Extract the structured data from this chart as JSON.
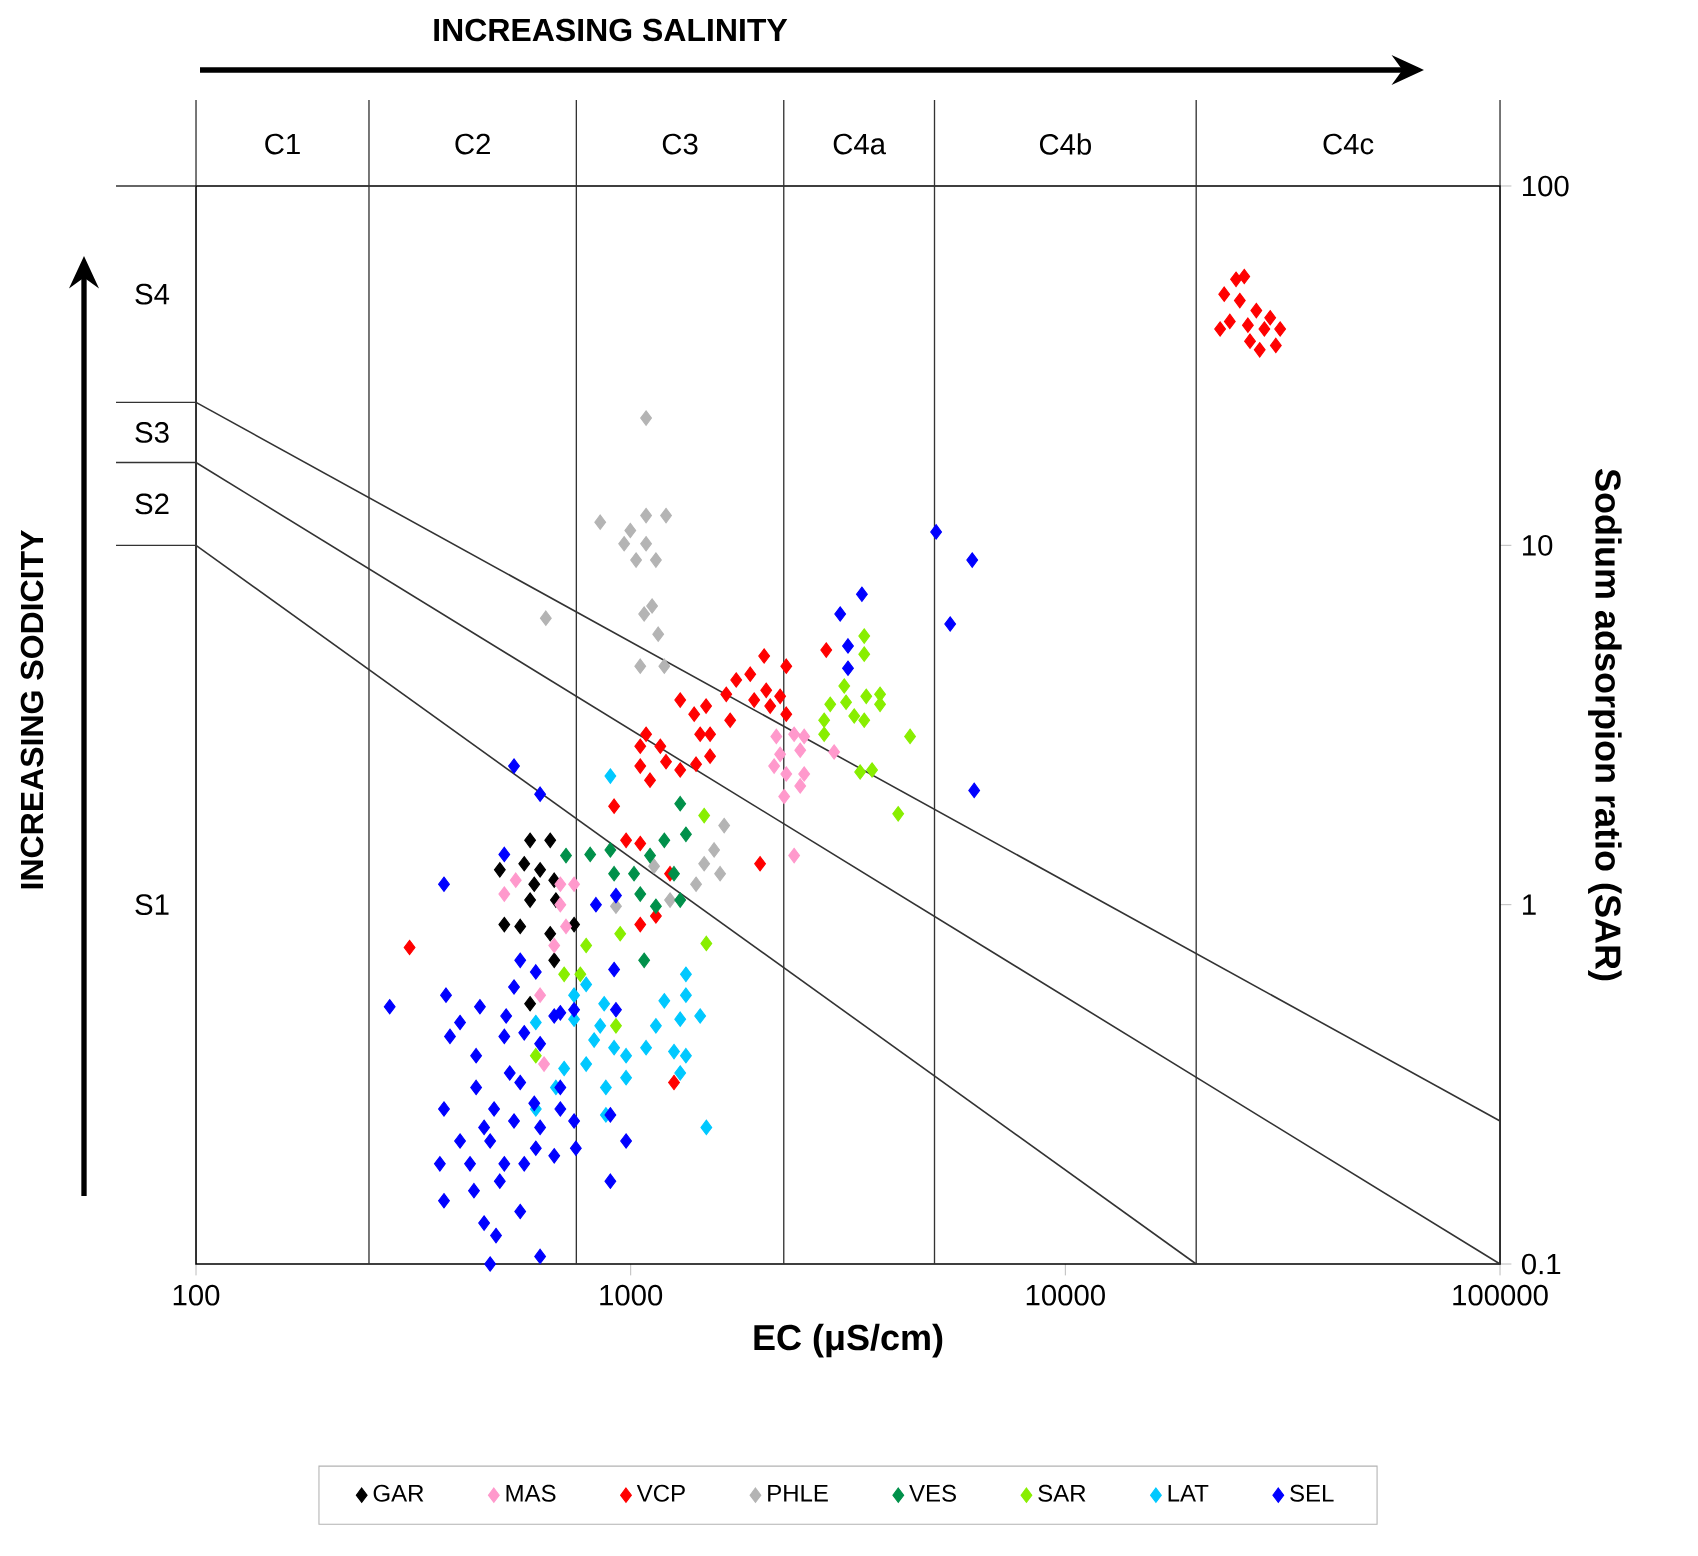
{
  "chart_data": {
    "type": "scatter",
    "xlabel": "EC (μS/cm)",
    "ylabel": "Sodium adsorpion ratio (SAR)",
    "log": "xy",
    "xlim": [
      100,
      100000
    ],
    "ylim": [
      0.1,
      100
    ],
    "xticks": [
      100,
      1000,
      10000,
      100000
    ],
    "yticks": [
      0.1,
      1,
      10,
      100
    ],
    "marker": "diamond",
    "legend": "bottom",
    "annotations": [
      "INCREASING SALINITY",
      "INCREASING SODICITY",
      "C1",
      "C2",
      "C3",
      "C4a",
      "C4b",
      "C4c",
      "S1",
      "S2",
      "S3",
      "S4"
    ],
    "ref_lines": [
      {
        "axis": "x",
        "value": 250,
        "color": "#333333"
      },
      {
        "axis": "x",
        "value": 750,
        "color": "#333333"
      },
      {
        "axis": "x",
        "value": 2250,
        "color": "#333333"
      },
      {
        "axis": "x",
        "value": 5000,
        "color": "#333333"
      },
      {
        "axis": "x",
        "value": 20000,
        "color": "#333333"
      }
    ],
    "series": [
      {
        "name": "GAR",
        "color": "#000000",
        "x": [
          587,
          653,
          500,
          569,
          619,
          667,
          600,
          673,
          587,
          512,
          557,
          653,
          741,
          667,
          587
        ],
        "values": [
          1.51,
          1.51,
          1.25,
          1.3,
          1.25,
          1.17,
          1.14,
          1.03,
          1.03,
          0.88,
          0.87,
          0.83,
          0.88,
          0.7,
          0.53
        ]
      },
      {
        "name": "MAS",
        "color": "#ff99cc",
        "x": [
          512,
          544,
          689,
          741,
          689,
          710,
          667,
          619,
          632,
          2163,
          2377,
          2507,
          2207,
          2455,
          2138,
          2280,
          2507,
          2255,
          2455,
          2938,
          2377
        ],
        "values": [
          1.07,
          1.17,
          1.14,
          1.14,
          1.0,
          0.87,
          0.77,
          0.56,
          0.36,
          2.94,
          2.98,
          2.94,
          2.62,
          2.69,
          2.43,
          2.31,
          2.31,
          2.0,
          2.14,
          2.66,
          1.37
        ]
      },
      {
        "name": "VCP",
        "color": "#ff0000",
        "x": [
          2028,
          1749,
          1884,
          2280,
          1300,
          1491,
          1400,
          1659,
          1924,
          2050,
          2207,
          2094,
          1694,
          2280,
          1445,
          1523,
          1085,
          1052,
          1170,
          1206,
          1300,
          1414,
          1523,
          2818,
          1052,
          1108,
          916,
          976,
          1052,
          1232,
          1143,
          1052,
          1258,
          310,
          1985,
          24700,
          25800,
          23200,
          25200,
          27500,
          29600,
          23900,
          26300,
          28700,
          31200,
          22700,
          26600,
          30500,
          28000
        ],
        "values": [
          4.92,
          4.22,
          4.38,
          4.61,
          3.71,
          3.57,
          3.39,
          3.85,
          3.71,
          3.95,
          3.8,
          3.57,
          3.26,
          3.39,
          2.98,
          2.98,
          2.98,
          2.76,
          2.76,
          2.5,
          2.37,
          2.46,
          2.59,
          5.11,
          2.43,
          2.22,
          1.88,
          1.51,
          1.48,
          1.22,
          0.93,
          0.88,
          0.32,
          0.76,
          1.3,
          55,
          56,
          50,
          48,
          45,
          43,
          42,
          41,
          40,
          40,
          40,
          37,
          36,
          35
        ]
      },
      {
        "name": "PHLE",
        "color": "#b4b4b4",
        "x": [
          1085,
          851,
          966,
          998,
          1085,
          1085,
          1206,
          1029,
          1143,
          1074,
          1120,
          1157,
          1052,
          1195,
          638,
          1641,
          1556,
          1476,
          1606,
          1414,
          1132,
          1232,
          925
        ],
        "values": [
          22.6,
          11.6,
          10.1,
          11.0,
          12.1,
          10.1,
          12.1,
          9.1,
          9.1,
          6.44,
          6.78,
          5.66,
          4.61,
          4.61,
          6.27,
          1.66,
          1.42,
          1.3,
          1.22,
          1.14,
          1.28,
          1.03,
          0.99
        ]
      },
      {
        "name": "VES",
        "color": "#00904a",
        "x": [
          710,
          807,
          898,
          916,
          1018,
          1108,
          1300,
          1340,
          1195,
          1258,
          1052,
          1143,
          1300,
          1074
        ],
        "values": [
          1.37,
          1.38,
          1.42,
          1.22,
          1.22,
          1.37,
          1.91,
          1.57,
          1.51,
          1.22,
          1.07,
          0.99,
          1.03,
          0.7
        ]
      },
      {
        "name": "SAR",
        "color": "#88ee00",
        "x": [
          3446,
          3446,
          3100,
          2878,
          3130,
          2787,
          2787,
          3268,
          3446,
          3483,
          3748,
          3748,
          4393,
          3372,
          3592,
          4125,
          1476,
          1493,
          946,
          790,
          703,
          766,
          925,
          605
        ],
        "values": [
          5.59,
          4.98,
          4.06,
          3.61,
          3.66,
          3.26,
          2.98,
          3.35,
          3.26,
          3.8,
          3.85,
          3.61,
          2.94,
          2.34,
          2.37,
          1.79,
          1.77,
          0.78,
          0.83,
          0.77,
          0.64,
          0.64,
          0.46,
          0.38
        ]
      },
      {
        "name": "LAT",
        "color": "#00c8ff",
        "x": [
          898,
          741,
          605,
          790,
          869,
          1340,
          1340,
          1195,
          1445,
          1300,
          1143,
          1258,
          1085,
          824,
          916,
          976,
          790,
          703,
          673,
          976,
          1340,
          1300,
          877,
          605,
          1493,
          741,
          851,
          877
        ],
        "values": [
          2.28,
          0.56,
          0.47,
          0.6,
          0.53,
          0.64,
          0.56,
          0.54,
          0.49,
          0.48,
          0.46,
          0.39,
          0.4,
          0.42,
          0.4,
          0.38,
          0.36,
          0.35,
          0.31,
          0.33,
          0.38,
          0.34,
          0.26,
          0.27,
          0.24,
          0.48,
          0.46,
          0.31
        ]
      },
      {
        "name": "SEL",
        "color": "#0000ff",
        "x": [
          539,
          619,
          372,
          279,
          376,
          5043,
          6106,
          5433,
          3404,
          3034,
          3162,
          3162,
          6170,
          512,
          832,
          925,
          557,
          605,
          539,
          450,
          517,
          667,
          916,
          925,
          405,
          384,
          441,
          512,
          569,
          619,
          689,
          741,
          527,
          441,
          557,
          689,
          600,
          485,
          372,
          460,
          539,
          619,
          689,
          741,
          405,
          475,
          512,
          569,
          605,
          667,
          364,
          427,
          748,
          436,
          500,
          372,
          460,
          557,
          490,
          898,
          976,
          898,
          475,
          619
        ],
        "values": [
          2.43,
          2.03,
          1.14,
          0.52,
          0.56,
          10.9,
          9.1,
          6.04,
          7.31,
          6.44,
          5.25,
          4.55,
          2.08,
          1.38,
          1.0,
          1.06,
          0.7,
          0.65,
          0.59,
          0.52,
          0.49,
          0.49,
          0.66,
          0.51,
          0.47,
          0.43,
          0.38,
          0.43,
          0.44,
          0.41,
          0.5,
          0.51,
          0.34,
          0.31,
          0.32,
          0.31,
          0.28,
          0.27,
          0.27,
          0.24,
          0.25,
          0.24,
          0.27,
          0.25,
          0.22,
          0.22,
          0.19,
          0.19,
          0.21,
          0.2,
          0.19,
          0.19,
          0.21,
          0.16,
          0.17,
          0.15,
          0.13,
          0.14,
          0.12,
          0.26,
          0.22,
          0.17,
          0.1,
          0.105
        ]
      },
      {
        "type": "line",
        "marker": "none",
        "color": "#333333",
        "x": [
          100,
          20000
        ],
        "values": [
          10,
          0.1
        ]
      },
      {
        "type": "line",
        "marker": "none",
        "color": "#333333",
        "x": [
          100,
          100000
        ],
        "values": [
          17,
          0.1
        ]
      },
      {
        "type": "line",
        "marker": "none",
        "color": "#333333",
        "x": [
          100,
          100000
        ],
        "values": [
          25,
          0.25
        ]
      }
    ]
  }
}
